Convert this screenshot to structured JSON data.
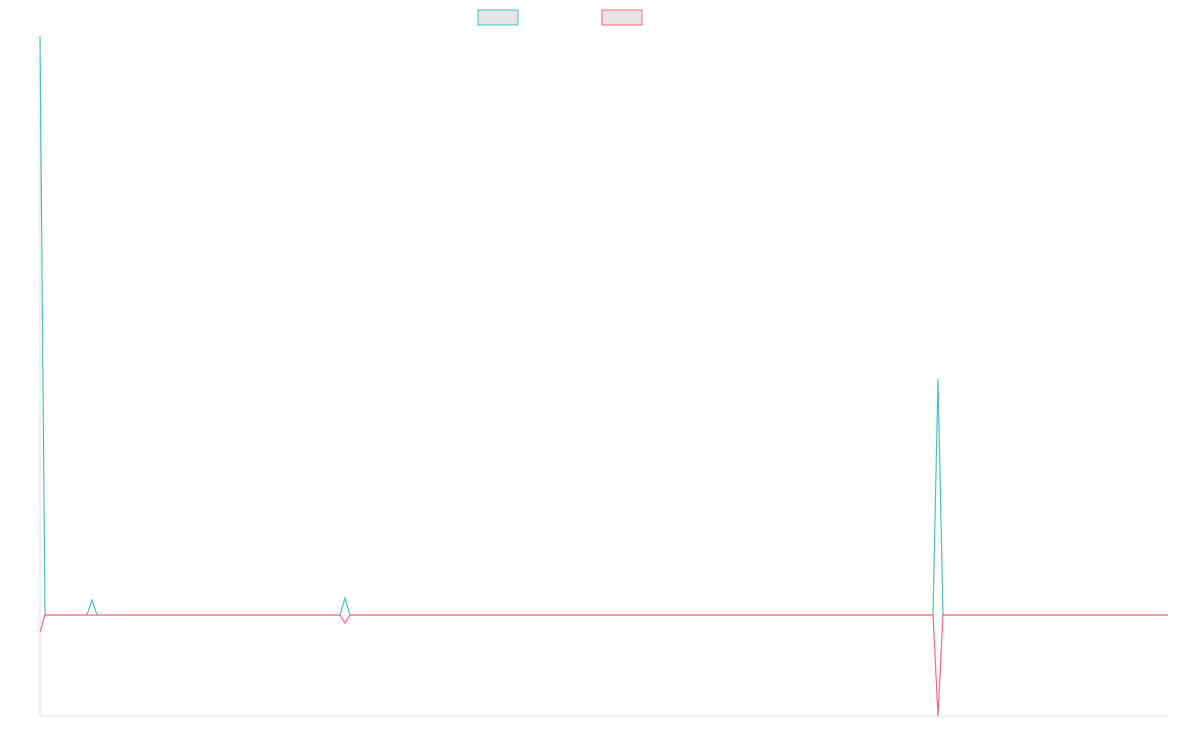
{
  "chart_data": {
    "type": "line",
    "x": [
      0,
      5,
      47,
      52,
      57,
      274,
      300,
      305,
      310,
      396,
      489,
      893,
      898,
      903,
      1128
    ],
    "series": [
      {
        "color": "#4bc0c0",
        "values": [
          579,
          0,
          0,
          15,
          0,
          0,
          0,
          17,
          0,
          0,
          0,
          0,
          236,
          0,
          0
        ]
      },
      {
        "color": "#ff6384",
        "values": [
          -17,
          0,
          0,
          0,
          0,
          0,
          0,
          -8,
          0,
          0,
          0,
          0,
          -101,
          0,
          0
        ]
      }
    ],
    "xlim": [
      0,
      1128
    ],
    "ylim": [
      -101,
      579
    ],
    "legend": "top"
  }
}
